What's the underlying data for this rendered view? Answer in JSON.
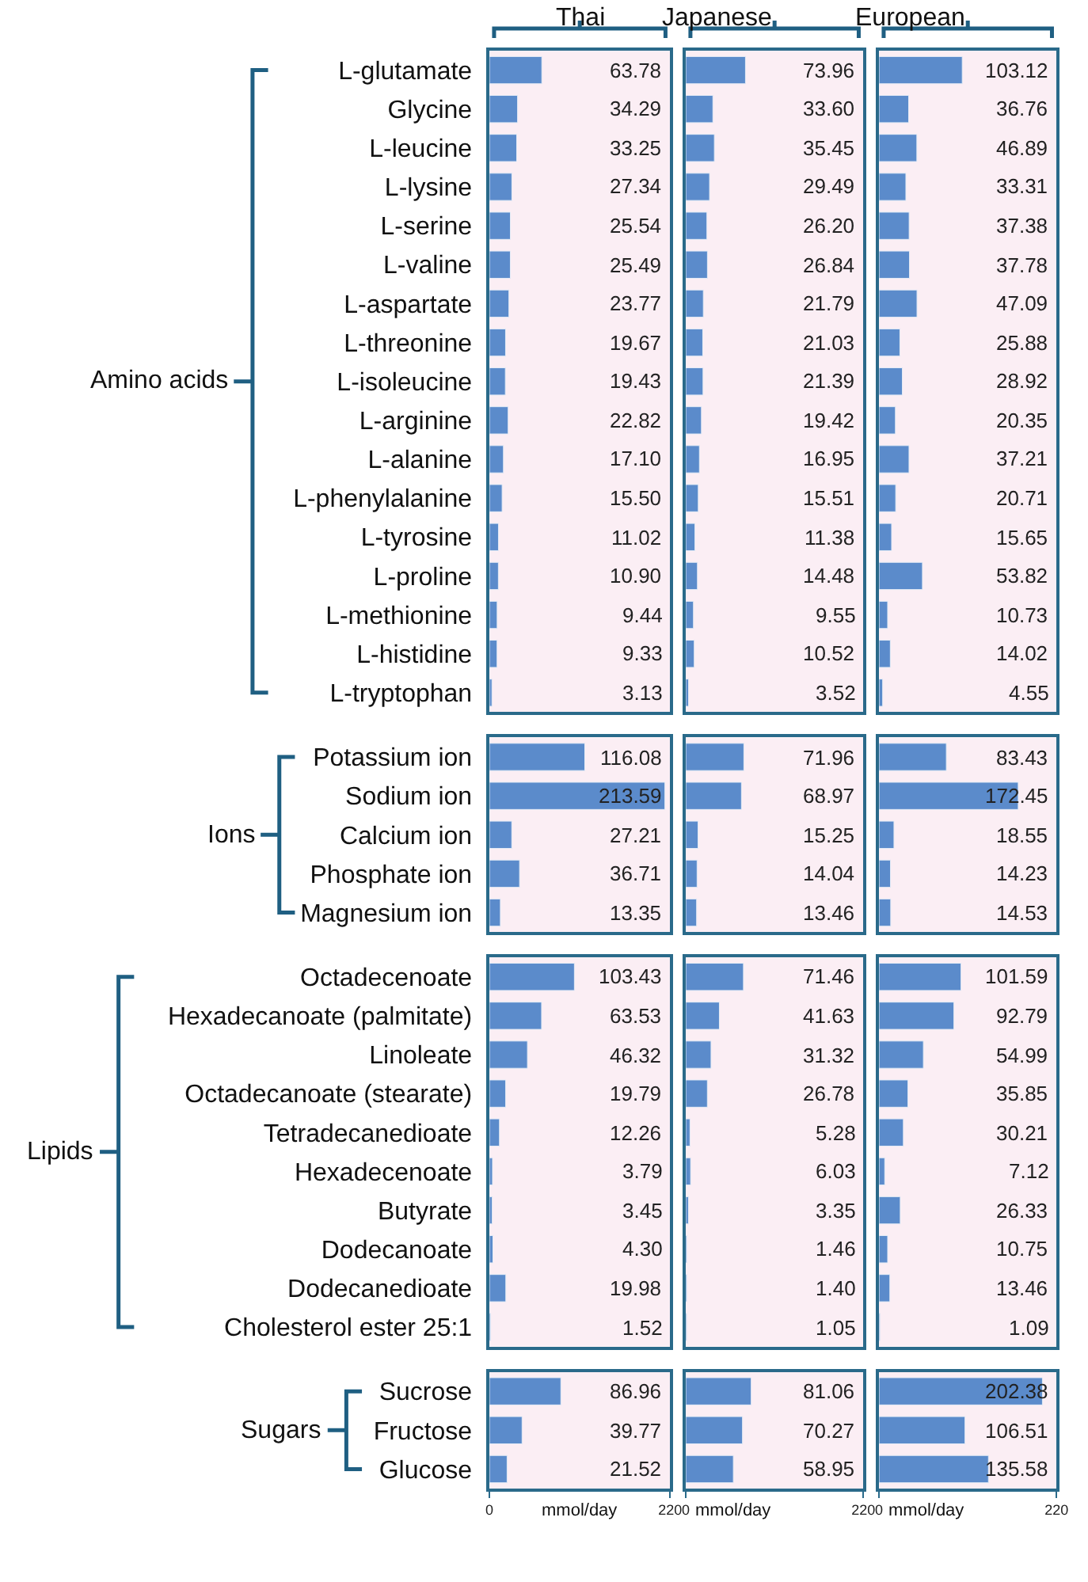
{
  "chart_data": [
    {
      "type": "bar",
      "orientation": "horizontal",
      "title": "Thai",
      "ylabel": "Amino acids",
      "tick_labels": "y",
      "color": "#5b8bcb",
      "xlim": [
        0,
        220
      ],
      "categories": [
        "L-glutamate",
        "Glycine",
        "L-leucine",
        "L-lysine",
        "L-serine",
        "L-valine",
        "L-aspartate",
        "L-threonine",
        "L-isoleucine",
        "L-arginine",
        "L-alanine",
        "L-phenylalanine",
        "L-tyrosine",
        "L-proline",
        "L-methionine",
        "L-histidine",
        "L-tryptophan"
      ],
      "values": [
        63.78,
        34.29,
        33.25,
        27.34,
        25.54,
        25.49,
        23.77,
        19.67,
        19.43,
        22.82,
        17.1,
        15.5,
        11.02,
        10.9,
        9.44,
        9.33,
        3.13
      ],
      "value_labels": [
        "63.78",
        "34.29",
        "33.25",
        "27.34",
        "25.54",
        "25.49",
        "23.77",
        "19.67",
        "19.43",
        "22.82",
        "17.10",
        "15.50",
        "11.02",
        "10.90",
        "9.44",
        "9.33",
        "3.13"
      ]
    },
    {
      "type": "bar",
      "orientation": "horizontal",
      "title": "Japanese",
      "tick_labels": false,
      "color": "#5b8bcb",
      "xlim": [
        0,
        220
      ],
      "categories": [
        null,
        null,
        null,
        null,
        null,
        null,
        null,
        null,
        null,
        null,
        null,
        null,
        null,
        null,
        null,
        null,
        null
      ],
      "values": [
        73.96,
        33.6,
        35.45,
        29.49,
        26.2,
        26.84,
        21.79,
        21.03,
        21.39,
        19.42,
        16.95,
        15.51,
        11.38,
        14.48,
        9.55,
        10.52,
        3.52
      ],
      "value_labels": [
        "73.96",
        "33.60",
        "35.45",
        "29.49",
        "26.20",
        "26.84",
        "21.79",
        "21.03",
        "21.39",
        "19.42",
        "16.95",
        "15.51",
        "11.38",
        "14.48",
        "9.55",
        "10.52",
        "3.52"
      ]
    },
    {
      "type": "bar",
      "orientation": "horizontal",
      "title": "European",
      "tick_labels": false,
      "color": "#5b8bcb",
      "xlim": [
        0,
        220
      ],
      "categories": [
        null,
        null,
        null,
        null,
        null,
        null,
        null,
        null,
        null,
        null,
        null,
        null,
        null,
        null,
        null,
        null,
        null
      ],
      "values": [
        103.12,
        36.76,
        46.89,
        33.31,
        37.38,
        37.78,
        47.09,
        25.88,
        28.92,
        20.35,
        37.21,
        20.71,
        15.65,
        53.82,
        10.73,
        14.02,
        4.55
      ],
      "value_labels": [
        "103.12",
        "36.76",
        "46.89",
        "33.31",
        "37.38",
        "37.78",
        "47.09",
        "25.88",
        "28.92",
        "20.35",
        "37.21",
        "20.71",
        "15.65",
        "53.82",
        "10.73",
        "14.02",
        "4.55"
      ]
    },
    {
      "type": "bar",
      "orientation": "horizontal",
      "ylabel": "Ions",
      "tick_labels": "y",
      "color": "#5b8bcb",
      "xlim": [
        0,
        220
      ],
      "categories": [
        "Potassium ion",
        "Sodium ion",
        "Calcium ion",
        "Phosphate ion",
        "Magnesium ion"
      ],
      "values": [
        116.08,
        213.59,
        27.21,
        36.71,
        13.35
      ],
      "value_labels": [
        "116.08",
        "213.59",
        "27.21",
        "36.71",
        "13.35"
      ]
    },
    {
      "type": "bar",
      "orientation": "horizontal",
      "tick_labels": false,
      "color": "#5b8bcb",
      "xlim": [
        0,
        220
      ],
      "categories": [
        null,
        null,
        null,
        null,
        null
      ],
      "values": [
        71.96,
        68.97,
        15.25,
        14.04,
        13.46
      ],
      "value_labels": [
        "71.96",
        "68.97",
        "15.25",
        "14.04",
        "13.46"
      ]
    },
    {
      "type": "bar",
      "orientation": "horizontal",
      "tick_labels": false,
      "color": "#5b8bcb",
      "xlim": [
        0,
        220
      ],
      "categories": [
        null,
        null,
        null,
        null,
        null
      ],
      "values": [
        83.43,
        172.45,
        18.55,
        14.23,
        14.53
      ],
      "value_labels": [
        "83.43",
        "172.45",
        "18.55",
        "14.23",
        "14.53"
      ]
    },
    {
      "type": "bar",
      "orientation": "horizontal",
      "ylabel": "Lipids",
      "tick_labels": "y",
      "color": "#5b8bcb",
      "xlim": [
        0,
        220
      ],
      "categories": [
        "Octadecenoate",
        "Hexadecanoate (palmitate)",
        "Linoleate",
        "Octadecanoate (stearate)",
        "Tetradecanedioate",
        "Hexadecenoate",
        "Butyrate",
        "Dodecanoate",
        "Dodecanedioate",
        "Cholesterol ester 25:1"
      ],
      "values": [
        103.43,
        63.53,
        46.32,
        19.79,
        12.26,
        3.79,
        3.45,
        4.3,
        19.98,
        1.52
      ],
      "value_labels": [
        "103.43",
        "63.53",
        "46.32",
        "19.79",
        "12.26",
        "3.79",
        "3.45",
        "4.30",
        "19.98",
        "1.52"
      ]
    },
    {
      "type": "bar",
      "orientation": "horizontal",
      "tick_labels": false,
      "color": "#5b8bcb",
      "xlim": [
        0,
        220
      ],
      "categories": [
        null,
        null,
        null,
        null,
        null,
        null,
        null,
        null,
        null,
        null
      ],
      "values": [
        71.46,
        41.63,
        31.32,
        26.78,
        5.28,
        6.03,
        3.35,
        1.46,
        1.4,
        1.05
      ],
      "value_labels": [
        "71.46",
        "41.63",
        "31.32",
        "26.78",
        "5.28",
        "6.03",
        "3.35",
        "1.46",
        "1.40",
        "1.05"
      ]
    },
    {
      "type": "bar",
      "orientation": "horizontal",
      "tick_labels": false,
      "color": "#5b8bcb",
      "xlim": [
        0,
        220
      ],
      "categories": [
        null,
        null,
        null,
        null,
        null,
        null,
        null,
        null,
        null,
        null
      ],
      "values": [
        101.59,
        92.79,
        54.99,
        35.85,
        30.21,
        7.12,
        26.33,
        10.75,
        13.46,
        1.09
      ],
      "value_labels": [
        "101.59",
        "92.79",
        "54.99",
        "35.85",
        "30.21",
        "7.12",
        "26.33",
        "10.75",
        "13.46",
        "1.09"
      ]
    },
    {
      "type": "bar",
      "orientation": "horizontal",
      "ylabel": "Sugars",
      "xlabel": "mmol/day",
      "color": "#5b8bcb",
      "xlim": [
        0,
        220
      ],
      "xticks": [
        0,
        220
      ],
      "categories": [
        "Sucrose",
        "Fructose",
        "Glucose"
      ],
      "values": [
        86.96,
        39.77,
        21.52
      ],
      "value_labels": [
        "86.96",
        "39.77",
        "21.52"
      ]
    },
    {
      "type": "bar",
      "orientation": "horizontal",
      "xlabel": "mmol/day",
      "tick_labels": "x",
      "color": "#5b8bcb",
      "xlim": [
        0,
        220
      ],
      "xticks": [
        0,
        220
      ],
      "categories": [
        null,
        null,
        null
      ],
      "values": [
        81.06,
        70.27,
        58.95
      ],
      "value_labels": [
        "81.06",
        "70.27",
        "58.95"
      ]
    },
    {
      "type": "bar",
      "orientation": "horizontal",
      "xlabel": "mmol/day",
      "tick_labels": "x",
      "color": "#5b8bcb",
      "xlim": [
        0,
        220
      ],
      "xticks": [
        0,
        220
      ],
      "categories": [
        null,
        null,
        null
      ],
      "values": [
        202.38,
        106.51,
        135.58
      ],
      "value_labels": [
        "202.38",
        "106.51",
        "135.58"
      ]
    }
  ]
}
